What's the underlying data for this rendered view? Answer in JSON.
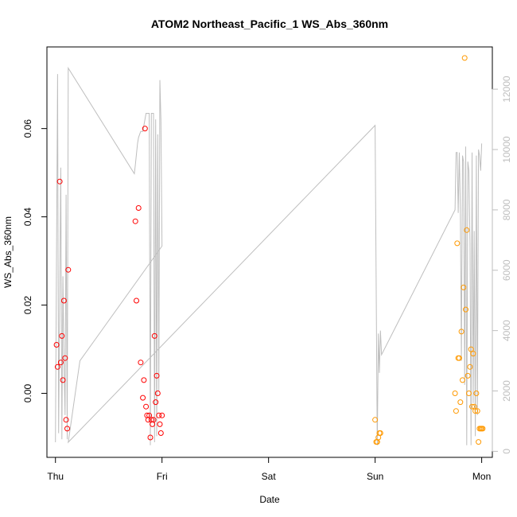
{
  "chart_data": {
    "type": "scatter",
    "title": "ATOM2 Northeast_Pacific_1 WS_Abs_360nm",
    "xlabel": "Date",
    "ylabel": "WS_Abs_360nm",
    "x_ticks": [
      "Thu",
      "Fri",
      "Sat",
      "Sun",
      "Mon"
    ],
    "xlim": [
      -0.08,
      4.1
    ],
    "ylim": [
      -0.0145,
      0.0785
    ],
    "y_ticks": [
      "0.00",
      "0.02",
      "0.04",
      "0.06"
    ],
    "y_tick_values": [
      0,
      0.02,
      0.04,
      0.06
    ],
    "y2lim": [
      -200,
      13400
    ],
    "y2_ticks": [
      "0",
      "2000",
      "4000",
      "6000",
      "8000",
      "10000",
      "12000"
    ],
    "y2_tick_values": [
      0,
      2000,
      4000,
      6000,
      8000,
      10000,
      12000
    ],
    "colors": {
      "series1": "#ff0000",
      "series2": "#ff9900",
      "line": "#bebebe"
    },
    "series": [
      {
        "color": "#ff0000",
        "x": [
          0.01,
          0.02,
          0.04,
          0.05,
          0.06,
          0.07,
          0.08,
          0.09,
          0.1,
          0.11,
          0.12,
          0.75,
          0.76,
          0.78,
          0.8,
          0.82,
          0.83,
          0.84,
          0.85,
          0.86,
          0.87,
          0.88,
          0.89,
          0.9,
          0.91,
          0.92,
          0.93,
          0.94,
          0.95,
          0.96,
          0.97,
          0.98,
          0.99,
          1.0
        ],
        "y": [
          0.011,
          0.006,
          0.048,
          0.007,
          0.013,
          0.003,
          0.021,
          0.008,
          -0.006,
          -0.008,
          0.028,
          0.039,
          0.021,
          0.042,
          0.007,
          -0.001,
          0.003,
          0.06,
          -0.003,
          -0.005,
          -0.006,
          -0.005,
          -0.01,
          -0.006,
          -0.007,
          -0.006,
          0.013,
          -0.002,
          0.004,
          0.0,
          -0.005,
          -0.007,
          -0.009,
          -0.005
        ]
      },
      {
        "color": "#ff9900",
        "x": [
          3.0,
          3.01,
          3.02,
          3.03,
          3.04,
          3.05,
          3.75,
          3.76,
          3.77,
          3.78,
          3.79,
          3.8,
          3.81,
          3.82,
          3.83,
          3.84,
          3.85,
          3.86,
          3.87,
          3.88,
          3.89,
          3.9,
          3.91,
          3.92,
          3.93,
          3.94,
          3.95,
          3.96,
          3.97,
          3.98,
          3.99,
          4.0,
          4.01
        ],
        "y": [
          -0.006,
          -0.011,
          -0.011,
          -0.01,
          -0.009,
          -0.009,
          0.0,
          -0.004,
          0.034,
          0.008,
          0.008,
          -0.002,
          0.014,
          0.003,
          0.024,
          0.076,
          0.019,
          0.037,
          0.004,
          0.0,
          0.006,
          0.01,
          -0.003,
          0.009,
          -0.003,
          -0.004,
          0.0,
          -0.004,
          -0.011,
          -0.008,
          -0.008,
          -0.008,
          -0.008
        ]
      },
      {
        "color": "#bebebe",
        "axis": "right",
        "type": "line",
        "x": [
          0.0,
          0.02,
          0.03,
          0.05,
          0.06,
          0.07,
          0.08,
          0.09,
          0.1,
          0.11,
          0.12,
          0.74,
          0.75,
          0.77,
          0.78,
          0.8,
          0.82,
          0.85,
          0.88,
          0.89,
          0.9,
          0.91,
          0.92,
          0.93,
          0.94,
          0.95,
          0.96,
          0.97,
          0.98,
          0.99,
          1.0,
          0.23,
          0.12,
          3.0,
          3.02,
          3.03,
          3.04,
          3.05,
          3.06,
          3.75,
          3.76,
          3.77,
          3.78,
          3.79,
          3.8,
          3.81,
          3.82,
          3.83,
          3.84,
          3.85,
          3.86,
          3.87,
          3.88,
          3.89,
          3.9,
          3.91,
          3.92,
          3.93,
          3.94,
          3.95,
          3.96,
          3.97,
          3.98,
          3.99,
          4.0
        ],
        "y": [
          300,
          12500,
          600,
          9400,
          400,
          5800,
          3000,
          1200,
          8500,
          400,
          12700,
          9200,
          9500,
          10200,
          10400,
          10600,
          10600,
          11200,
          11200,
          200,
          11200,
          11200,
          11200,
          300,
          11000,
          500,
          10500,
          2000,
          12300,
          11000,
          6800,
          3000,
          300,
          10800,
          200,
          3900,
          2600,
          4000,
          3200,
          8000,
          9900,
          9900,
          7900,
          9900,
          8000,
          3000,
          9800,
          9600,
          2200,
          10100,
          200,
          9600,
          9300,
          6900,
          200,
          9900,
          1600,
          7300,
          500,
          9800,
          1200,
          10000,
          9800,
          9300,
          10200
        ]
      }
    ]
  }
}
